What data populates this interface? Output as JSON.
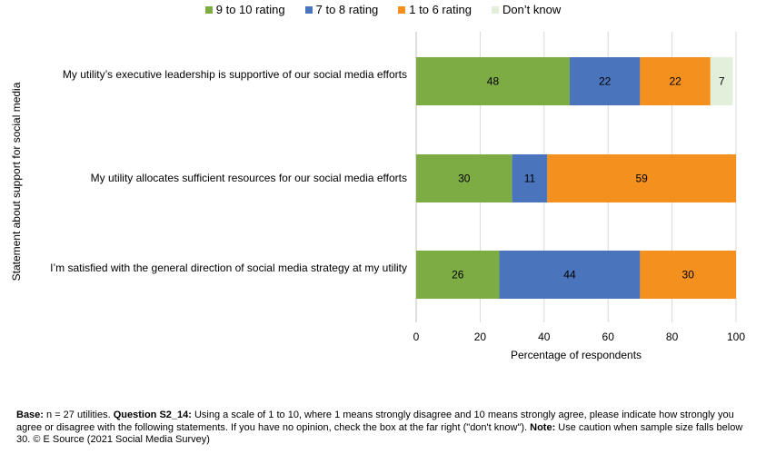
{
  "chart_data": {
    "type": "bar",
    "orientation": "horizontal",
    "stacked": true,
    "categories": [
      "My utility’s executive leadership is supportive of our social media efforts",
      "My utility allocates sufficient resources for our social media efforts",
      "I’m satisfied with the general direction of social media strategy at my utility"
    ],
    "series": [
      {
        "name": "9 to 10 rating",
        "color": "#7cac43",
        "values": [
          48,
          30,
          26
        ]
      },
      {
        "name": "7 to 8 rating",
        "color": "#4a74bb",
        "values": [
          22,
          11,
          44
        ]
      },
      {
        "name": "1 to 6 rating",
        "color": "#f4901e",
        "values": [
          22,
          59,
          30
        ]
      },
      {
        "name": "Don’t know",
        "color": "#e2efda",
        "values": [
          7,
          0,
          0
        ]
      }
    ],
    "xlabel": "Percentage of respondents",
    "ylabel": "Statement about support for social media",
    "xlim": [
      0,
      100
    ],
    "xticks": [
      0,
      20,
      40,
      60,
      80,
      100
    ],
    "grid": "vertical",
    "legend": "top"
  },
  "footnote": {
    "base_label": "Base:",
    "base_text": " n = 27 utilities. ",
    "question_label": "Question S2_14:",
    "question_text": " Using a scale of 1 to 10, where 1 means strongly disagree and 10 means strongly agree, please indicate how strongly you agree or disagree with the following statements. If you have no opinion, check the box at the far right (\"don't know\"). ",
    "note_label": "Note:",
    "note_text": " Use caution when sample size falls below 30. © E Source (2021 Social Media Survey)"
  }
}
